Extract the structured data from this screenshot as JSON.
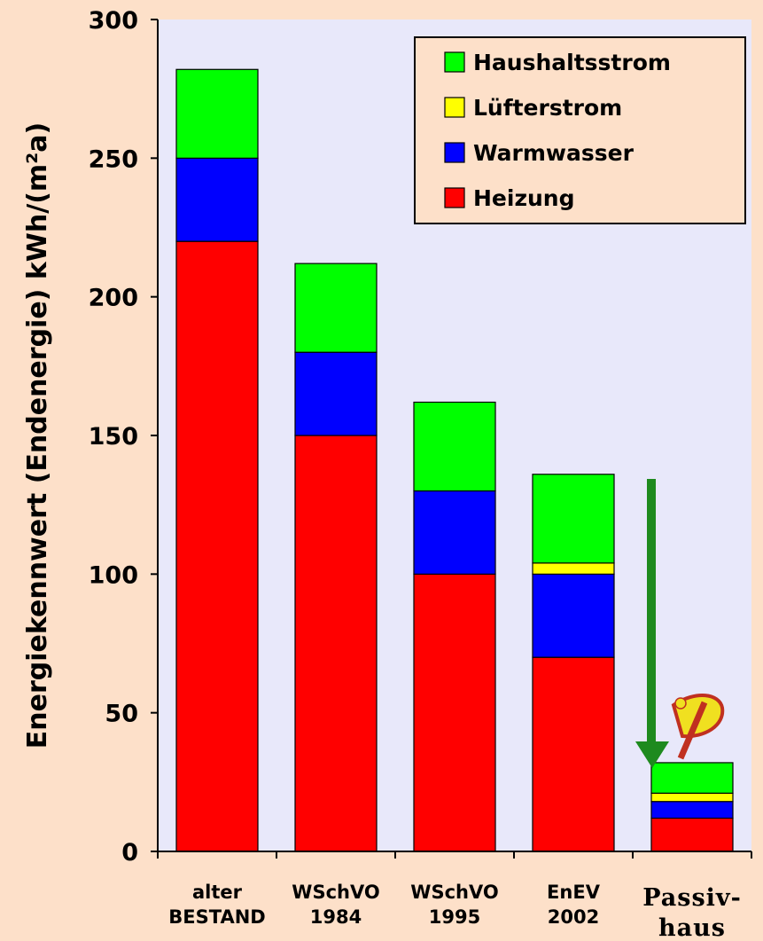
{
  "chart_data": {
    "type": "bar",
    "stacked": true,
    "ylabel": "Energiekennwert  (Endenergie) kWh/(m²a)",
    "ylim": [
      0,
      300
    ],
    "yticks": [
      0,
      50,
      100,
      150,
      200,
      250,
      300
    ],
    "categories": [
      [
        "alter",
        "BESTAND"
      ],
      [
        "WSchVO",
        "1984"
      ],
      [
        "WSchVO",
        "1995"
      ],
      [
        "EnEV",
        "2002"
      ],
      [
        "Passiv-",
        "haus"
      ]
    ],
    "series": [
      {
        "name": "Heizung",
        "color": "#ff0000",
        "values": [
          220,
          150,
          100,
          70,
          12
        ]
      },
      {
        "name": "Warmwasser",
        "color": "#0000ff",
        "values": [
          30,
          30,
          30,
          30,
          6
        ]
      },
      {
        "name": "Lüfterstrom",
        "color": "#ffff00",
        "values": [
          0,
          0,
          0,
          4,
          3
        ]
      },
      {
        "name": "Haushaltsstrom",
        "color": "#00ff00",
        "values": [
          32,
          32,
          32,
          32,
          11
        ]
      }
    ],
    "legend_order": [
      "Haushaltsstrom",
      "Lüfterstrom",
      "Warmwasser",
      "Heizung"
    ],
    "legend_position": "top-right",
    "plot_background": "#e8e8fa",
    "arrow_color": "#1e8a1e",
    "logo_colors": [
      "#f0e020",
      "#c03020"
    ]
  }
}
